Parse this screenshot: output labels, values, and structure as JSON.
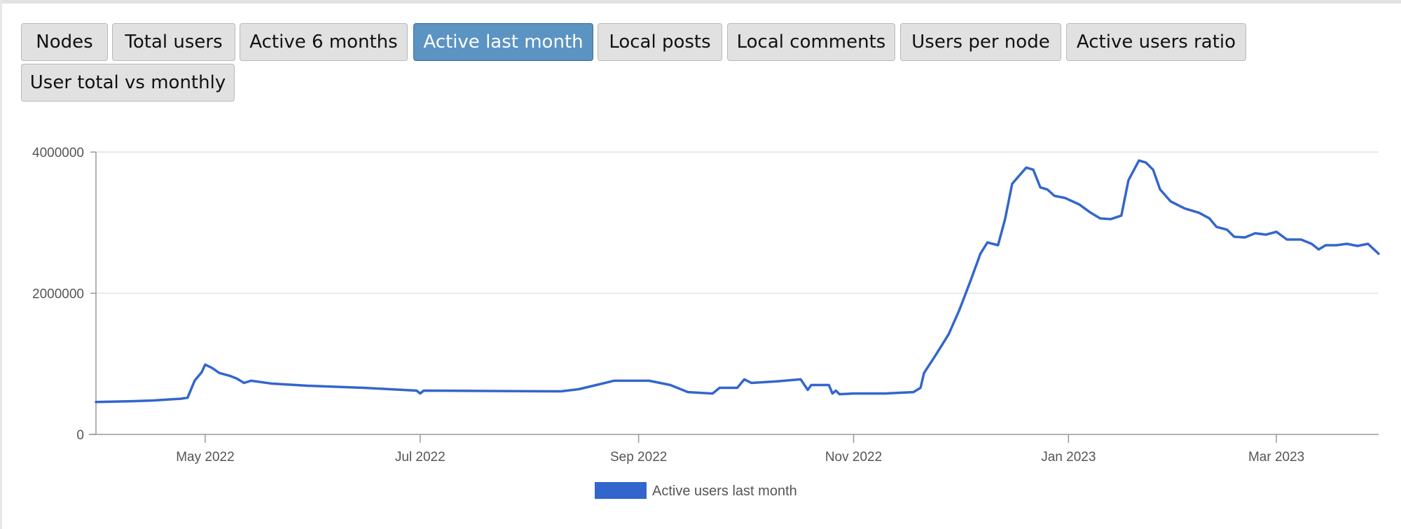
{
  "tabs": [
    {
      "label": "Nodes",
      "active": false
    },
    {
      "label": "Total users",
      "active": false
    },
    {
      "label": "Active 6 months",
      "active": false
    },
    {
      "label": "Active last month",
      "active": true
    },
    {
      "label": "Local posts",
      "active": false
    },
    {
      "label": "Local comments",
      "active": false
    },
    {
      "label": "Users per node",
      "active": false
    },
    {
      "label": "Active users ratio",
      "active": false
    },
    {
      "label": "User total vs monthly",
      "active": false
    }
  ],
  "colors": {
    "series": "#3366cc",
    "active_tab": "#5b93c2",
    "tab": "#e1e1e1",
    "grid": "#e3e3e3",
    "axis": "#999999"
  },
  "chart_data": {
    "type": "line",
    "title": "",
    "xlabel": "",
    "ylabel": "",
    "ylim": [
      0,
      4000000
    ],
    "xlim": [
      "2022-03-31",
      "2023-03-30"
    ],
    "y_ticks": [
      {
        "value": 0,
        "label": "0"
      },
      {
        "value": 2000000,
        "label": "2000000"
      },
      {
        "value": 4000000,
        "label": "4000000"
      }
    ],
    "x_ticks": [
      {
        "date": "2022-05-01",
        "label": "May 2022"
      },
      {
        "date": "2022-07-01",
        "label": "Jul 2022"
      },
      {
        "date": "2022-09-01",
        "label": "Sep 2022"
      },
      {
        "date": "2022-11-01",
        "label": "Nov 2022"
      },
      {
        "date": "2023-01-01",
        "label": "Jan 2023"
      },
      {
        "date": "2023-03-01",
        "label": "Mar 2023"
      }
    ],
    "grid": true,
    "legend_position": "bottom",
    "series": [
      {
        "name": "Active users last month",
        "points": [
          [
            "2022-03-31",
            460000
          ],
          [
            "2022-04-10",
            470000
          ],
          [
            "2022-04-16",
            480000
          ],
          [
            "2022-04-24",
            505000
          ],
          [
            "2022-04-26",
            520000
          ],
          [
            "2022-04-28",
            760000
          ],
          [
            "2022-04-30",
            880000
          ],
          [
            "2022-05-01",
            990000
          ],
          [
            "2022-05-03",
            940000
          ],
          [
            "2022-05-05",
            870000
          ],
          [
            "2022-05-08",
            830000
          ],
          [
            "2022-05-10",
            790000
          ],
          [
            "2022-05-12",
            730000
          ],
          [
            "2022-05-14",
            760000
          ],
          [
            "2022-05-20",
            720000
          ],
          [
            "2022-05-30",
            690000
          ],
          [
            "2022-06-15",
            660000
          ],
          [
            "2022-06-30",
            620000
          ],
          [
            "2022-07-01",
            580000
          ],
          [
            "2022-07-02",
            620000
          ],
          [
            "2022-07-20",
            615000
          ],
          [
            "2022-08-10",
            610000
          ],
          [
            "2022-08-15",
            640000
          ],
          [
            "2022-08-20",
            700000
          ],
          [
            "2022-08-25",
            760000
          ],
          [
            "2022-09-04",
            760000
          ],
          [
            "2022-09-10",
            700000
          ],
          [
            "2022-09-15",
            600000
          ],
          [
            "2022-09-22",
            580000
          ],
          [
            "2022-09-24",
            660000
          ],
          [
            "2022-09-29",
            660000
          ],
          [
            "2022-10-01",
            780000
          ],
          [
            "2022-10-03",
            730000
          ],
          [
            "2022-10-10",
            750000
          ],
          [
            "2022-10-17",
            780000
          ],
          [
            "2022-10-19",
            630000
          ],
          [
            "2022-10-20",
            700000
          ],
          [
            "2022-10-25",
            700000
          ],
          [
            "2022-10-26",
            580000
          ],
          [
            "2022-10-27",
            620000
          ],
          [
            "2022-10-28",
            570000
          ],
          [
            "2022-11-01",
            580000
          ],
          [
            "2022-11-10",
            580000
          ],
          [
            "2022-11-18",
            600000
          ],
          [
            "2022-11-20",
            660000
          ],
          [
            "2022-11-21",
            870000
          ],
          [
            "2022-11-24",
            1100000
          ],
          [
            "2022-11-26",
            1260000
          ],
          [
            "2022-11-28",
            1420000
          ],
          [
            "2022-12-01",
            1760000
          ],
          [
            "2022-12-04",
            2150000
          ],
          [
            "2022-12-07",
            2560000
          ],
          [
            "2022-12-09",
            2720000
          ],
          [
            "2022-12-12",
            2680000
          ],
          [
            "2022-12-14",
            3050000
          ],
          [
            "2022-12-16",
            3550000
          ],
          [
            "2022-12-20",
            3780000
          ],
          [
            "2022-12-22",
            3750000
          ],
          [
            "2022-12-24",
            3500000
          ],
          [
            "2022-12-26",
            3470000
          ],
          [
            "2022-12-28",
            3380000
          ],
          [
            "2022-12-31",
            3350000
          ],
          [
            "2023-01-04",
            3260000
          ],
          [
            "2023-01-07",
            3150000
          ],
          [
            "2023-01-10",
            3060000
          ],
          [
            "2023-01-13",
            3050000
          ],
          [
            "2023-01-16",
            3100000
          ],
          [
            "2023-01-18",
            3600000
          ],
          [
            "2023-01-21",
            3880000
          ],
          [
            "2023-01-23",
            3850000
          ],
          [
            "2023-01-25",
            3750000
          ],
          [
            "2023-01-27",
            3470000
          ],
          [
            "2023-01-30",
            3300000
          ],
          [
            "2023-02-03",
            3200000
          ],
          [
            "2023-02-07",
            3140000
          ],
          [
            "2023-02-10",
            3060000
          ],
          [
            "2023-02-12",
            2940000
          ],
          [
            "2023-02-15",
            2900000
          ],
          [
            "2023-02-17",
            2800000
          ],
          [
            "2023-02-20",
            2790000
          ],
          [
            "2023-02-23",
            2850000
          ],
          [
            "2023-02-26",
            2830000
          ],
          [
            "2023-03-01",
            2870000
          ],
          [
            "2023-03-04",
            2760000
          ],
          [
            "2023-03-08",
            2760000
          ],
          [
            "2023-03-11",
            2700000
          ],
          [
            "2023-03-13",
            2620000
          ],
          [
            "2023-03-15",
            2680000
          ],
          [
            "2023-03-18",
            2680000
          ],
          [
            "2023-03-21",
            2700000
          ],
          [
            "2023-03-24",
            2670000
          ],
          [
            "2023-03-27",
            2700000
          ],
          [
            "2023-03-30",
            2560000
          ]
        ]
      }
    ]
  }
}
